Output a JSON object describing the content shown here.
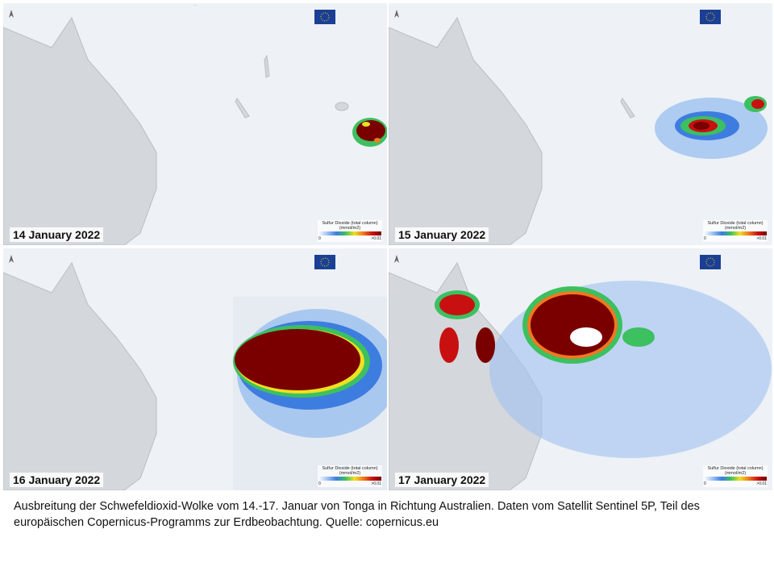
{
  "panels": [
    {
      "id": "p1",
      "date": "14 January 2022",
      "legend_title": "Sulfur Dioxide (total column)",
      "legend_unit": "(mmol/m2)",
      "legend_min": "0",
      "legend_max": ">0.01"
    },
    {
      "id": "p2",
      "date": "15 January 2022",
      "legend_title": "Sulfur Dioxide (total column)",
      "legend_unit": "(mmol/m2)",
      "legend_min": "0",
      "legend_max": ">0.01"
    },
    {
      "id": "p3",
      "date": "16 January 2022",
      "legend_title": "Sulfur Dioxide (total column)",
      "legend_unit": "(mmol/m2)",
      "legend_min": "0",
      "legend_max": ">0.01"
    },
    {
      "id": "p4",
      "date": "17 January 2022",
      "legend_title": "Sulfur Dioxide (total column)",
      "legend_unit": "(mmol/m2)",
      "legend_min": "0",
      "legend_max": ">0.01"
    }
  ],
  "colors": {
    "land": "#d4d8dc",
    "ocean": "#eef1f5",
    "coast": "#b8bec6",
    "plume_low": "#9ec2f0",
    "plume_mid": "#3d7de0",
    "plume_green": "#3cc060",
    "plume_yellow": "#f0e020",
    "plume_red": "#c81010",
    "plume_max": "#7a0000",
    "eu_blue": "#1a3f95",
    "eu_star": "#ffd800"
  },
  "caption": "Ausbreitung der Schwefeldioxid-Wolke vom 14.-17. Januar von Tonga in Richtung Australien. Daten vom Satellit Sentinel 5P, Teil des europäischen Copernicus-Programms zur Erdbeobachtung. Quelle: copernicus.eu"
}
